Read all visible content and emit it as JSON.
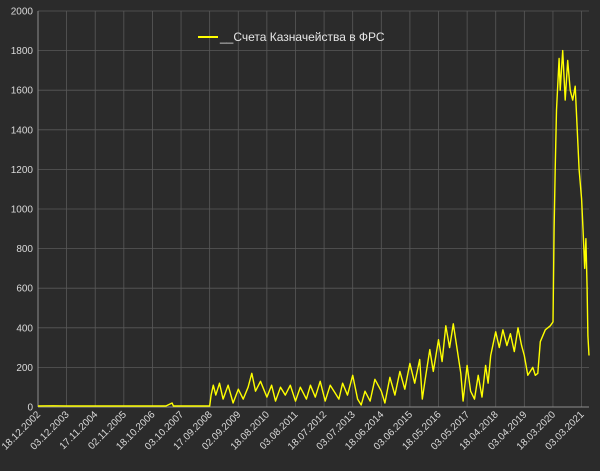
{
  "chart_data": {
    "type": "line",
    "series": [
      {
        "name": "__Счета Казначейства в ФРС",
        "color": "#ffff00",
        "points": [
          [
            "2002-12-18",
            5
          ],
          [
            "2003-06-18",
            6
          ],
          [
            "2003-12-03",
            5
          ],
          [
            "2004-06-01",
            5
          ],
          [
            "2004-11-17",
            5
          ],
          [
            "2005-06-01",
            5
          ],
          [
            "2005-11-02",
            5
          ],
          [
            "2006-05-01",
            5
          ],
          [
            "2006-10-18",
            5
          ],
          [
            "2007-04-01",
            5
          ],
          [
            "2007-06-15",
            20
          ],
          [
            "2007-07-01",
            5
          ],
          [
            "2007-10-03",
            5
          ],
          [
            "2008-03-01",
            5
          ],
          [
            "2008-09-17",
            5
          ],
          [
            "2008-10-05",
            60
          ],
          [
            "2008-11-01",
            110
          ],
          [
            "2008-12-01",
            60
          ],
          [
            "2009-01-15",
            120
          ],
          [
            "2009-03-01",
            40
          ],
          [
            "2009-05-01",
            110
          ],
          [
            "2009-07-01",
            20
          ],
          [
            "2009-09-02",
            90
          ],
          [
            "2009-11-01",
            40
          ],
          [
            "2010-01-01",
            100
          ],
          [
            "2010-02-15",
            170
          ],
          [
            "2010-04-01",
            80
          ],
          [
            "2010-06-01",
            130
          ],
          [
            "2010-08-18",
            50
          ],
          [
            "2010-10-15",
            110
          ],
          [
            "2010-12-01",
            30
          ],
          [
            "2011-02-01",
            100
          ],
          [
            "2011-04-01",
            60
          ],
          [
            "2011-06-01",
            110
          ],
          [
            "2011-08-03",
            30
          ],
          [
            "2011-10-01",
            100
          ],
          [
            "2011-12-15",
            40
          ],
          [
            "2012-02-01",
            110
          ],
          [
            "2012-04-01",
            50
          ],
          [
            "2012-06-01",
            130
          ],
          [
            "2012-08-01",
            30
          ],
          [
            "2012-10-01",
            110
          ],
          [
            "2012-12-01",
            70
          ],
          [
            "2013-01-15",
            40
          ],
          [
            "2013-03-01",
            120
          ],
          [
            "2013-05-01",
            60
          ],
          [
            "2013-07-03",
            160
          ],
          [
            "2013-09-01",
            40
          ],
          [
            "2013-10-15",
            10
          ],
          [
            "2013-12-01",
            80
          ],
          [
            "2014-02-01",
            30
          ],
          [
            "2014-04-01",
            140
          ],
          [
            "2014-06-18",
            80
          ],
          [
            "2014-08-01",
            20
          ],
          [
            "2014-10-01",
            150
          ],
          [
            "2014-12-01",
            60
          ],
          [
            "2015-02-01",
            180
          ],
          [
            "2015-04-01",
            90
          ],
          [
            "2015-06-03",
            220
          ],
          [
            "2015-08-01",
            120
          ],
          [
            "2015-10-01",
            240
          ],
          [
            "2015-11-01",
            40
          ],
          [
            "2015-12-15",
            160
          ],
          [
            "2016-02-01",
            290
          ],
          [
            "2016-03-15",
            180
          ],
          [
            "2016-05-18",
            340
          ],
          [
            "2016-07-01",
            230
          ],
          [
            "2016-08-15",
            410
          ],
          [
            "2016-10-01",
            300
          ],
          [
            "2016-11-15",
            420
          ],
          [
            "2017-01-01",
            290
          ],
          [
            "2017-02-15",
            170
          ],
          [
            "2017-03-15",
            30
          ],
          [
            "2017-05-03",
            210
          ],
          [
            "2017-06-15",
            80
          ],
          [
            "2017-08-01",
            40
          ],
          [
            "2017-09-15",
            160
          ],
          [
            "2017-11-01",
            50
          ],
          [
            "2017-12-15",
            210
          ],
          [
            "2018-01-15",
            120
          ],
          [
            "2018-02-15",
            260
          ],
          [
            "2018-04-18",
            380
          ],
          [
            "2018-06-01",
            300
          ],
          [
            "2018-07-15",
            390
          ],
          [
            "2018-09-01",
            310
          ],
          [
            "2018-10-15",
            370
          ],
          [
            "2018-12-01",
            280
          ],
          [
            "2019-01-15",
            400
          ],
          [
            "2019-03-01",
            310
          ],
          [
            "2019-04-03",
            260
          ],
          [
            "2019-05-15",
            160
          ],
          [
            "2019-07-15",
            200
          ],
          [
            "2019-08-15",
            160
          ],
          [
            "2019-09-15",
            170
          ],
          [
            "2019-10-15",
            330
          ],
          [
            "2019-12-15",
            390
          ],
          [
            "2020-02-15",
            410
          ],
          [
            "2020-03-18",
            430
          ],
          [
            "2020-04-01",
            900
          ],
          [
            "2020-04-15",
            1200
          ],
          [
            "2020-05-01",
            1500
          ],
          [
            "2020-06-01",
            1760
          ],
          [
            "2020-06-15",
            1600
          ],
          [
            "2020-07-15",
            1800
          ],
          [
            "2020-08-15",
            1550
          ],
          [
            "2020-09-15",
            1750
          ],
          [
            "2020-10-15",
            1600
          ],
          [
            "2020-11-15",
            1550
          ],
          [
            "2020-12-15",
            1620
          ],
          [
            "2021-01-15",
            1350
          ],
          [
            "2021-02-01",
            1200
          ],
          [
            "2021-03-03",
            1050
          ],
          [
            "2021-03-20",
            900
          ],
          [
            "2021-04-10",
            700
          ],
          [
            "2021-04-25",
            850
          ],
          [
            "2021-05-10",
            600
          ],
          [
            "2021-05-20",
            360
          ],
          [
            "2021-06-02",
            260
          ]
        ]
      }
    ],
    "y_ticks": [
      0,
      200,
      400,
      600,
      800,
      1000,
      1200,
      1400,
      1600,
      1800,
      2000
    ],
    "x_tick_labels": [
      "18.12.2002",
      "03.12.2003",
      "17.11.2004",
      "02.11.2005",
      "18.10.2006",
      "03.10.2007",
      "17.09.2008",
      "02.09.2009",
      "18.08.2010",
      "03.08.2011",
      "18.07.2012",
      "03.07.2013",
      "18.06.2014",
      "03.06.2015",
      "18.05.2016",
      "03.05.2017",
      "18.04.2018",
      "03.04.2019",
      "18.03.2020",
      "03.03.2021"
    ],
    "ylim": [
      0,
      2000
    ],
    "xlim": [
      "2002-12-18",
      "2021-06-02"
    ],
    "grid": true,
    "legend_position": "top-center",
    "colors": {
      "background": "#2b2b2b",
      "grid": "#595959",
      "axis": "#8c8c8c",
      "text": "#d9d9d9",
      "series": "#ffff00"
    }
  }
}
